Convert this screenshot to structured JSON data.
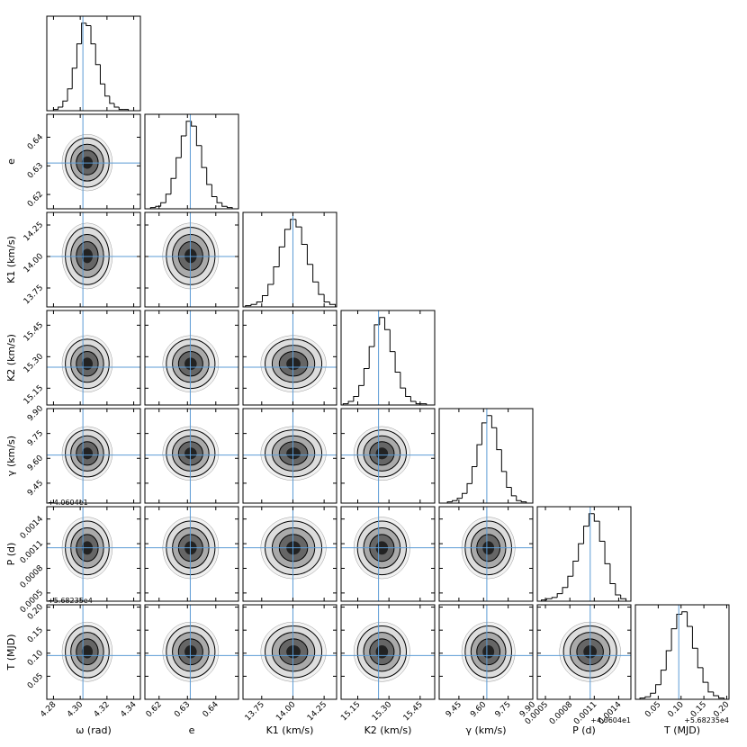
{
  "chart_data": {
    "type": "corner",
    "truth_color": "#5b9bd5",
    "hist_color": "#000000",
    "parameters": [
      {
        "label": "ω (rad)",
        "lim": [
          4.275,
          4.345
        ],
        "ticks": [
          4.28,
          {
            "value": 4.3,
            "label": "4.30"
          },
          4.32,
          4.34
        ],
        "truth": 4.302,
        "bins": [
          4.28,
          4.2835,
          4.287,
          4.2905,
          4.294,
          4.2975,
          4.301,
          4.3045,
          4.308,
          4.3115,
          4.315,
          4.3185,
          4.322,
          4.3255,
          4.329,
          4.3325,
          4.336
        ],
        "counts": [
          1,
          3,
          8,
          18,
          35,
          55,
          72,
          70,
          55,
          38,
          22,
          12,
          6,
          3,
          1,
          1
        ]
      },
      {
        "label": "e",
        "lim": [
          0.615,
          0.648
        ],
        "ticks": [
          0.62,
          0.63,
          0.64
        ],
        "truth": 0.631,
        "bins": [
          0.617,
          0.6188,
          0.6206,
          0.6224,
          0.6242,
          0.626,
          0.6278,
          0.6296,
          0.6314,
          0.6332,
          0.635,
          0.6368,
          0.6386,
          0.6404,
          0.6422,
          0.644,
          0.6458
        ],
        "counts": [
          1,
          2,
          5,
          12,
          25,
          42,
          60,
          72,
          68,
          52,
          34,
          20,
          10,
          5,
          2,
          1
        ]
      },
      {
        "label": "K1 (km/s)",
        "lim": [
          13.6,
          14.35
        ],
        "ticks": [
          13.75,
          {
            "value": 14,
            "label": "14.00"
          },
          14.25
        ],
        "truth": 14.0,
        "bins": [
          13.62,
          13.665,
          13.71,
          13.755,
          13.8,
          13.845,
          13.89,
          13.935,
          13.98,
          14.025,
          14.07,
          14.115,
          14.16,
          14.205,
          14.25,
          14.295,
          14.34
        ],
        "counts": [
          1,
          2,
          4,
          9,
          18,
          32,
          48,
          62,
          70,
          64,
          50,
          34,
          20,
          10,
          4,
          2
        ]
      },
      {
        "label": "K2 (km/s)",
        "lim": [
          15.07,
          15.52
        ],
        "ticks": [
          15.15,
          {
            "value": 15.3,
            "label": "15.30"
          },
          15.45
        ],
        "truth": 15.25,
        "bins": [
          15.08,
          15.105,
          15.13,
          15.155,
          15.18,
          15.205,
          15.23,
          15.255,
          15.28,
          15.305,
          15.33,
          15.355,
          15.38,
          15.405,
          15.43,
          15.455,
          15.48
        ],
        "counts": [
          1,
          3,
          7,
          16,
          30,
          48,
          66,
          72,
          62,
          44,
          27,
          14,
          7,
          3,
          1,
          1
        ]
      },
      {
        "label": "γ (km/s)",
        "lim": [
          9.33,
          9.9
        ],
        "ticks": [
          9.45,
          {
            "value": 9.6,
            "label": "9.60"
          },
          9.75,
          {
            "value": 9.9,
            "label": "9.90"
          }
        ],
        "truth": 9.62,
        "bins": [
          9.38,
          9.41,
          9.44,
          9.47,
          9.5,
          9.53,
          9.56,
          9.59,
          9.62,
          9.65,
          9.68,
          9.71,
          9.74,
          9.77,
          9.8,
          9.83,
          9.86
        ],
        "counts": [
          1,
          2,
          4,
          8,
          16,
          30,
          48,
          66,
          72,
          62,
          44,
          26,
          13,
          6,
          2,
          1
        ]
      },
      {
        "label": "P (d)",
        "offset": "+4.0604e1",
        "lim": [
          0.0004,
          0.00155
        ],
        "ticks": [
          0.0005,
          0.0008,
          0.0011,
          0.0014
        ],
        "truth": 0.00105,
        "bins": [
          0.00045,
          0.000515,
          0.00058,
          0.000645,
          0.00071,
          0.000775,
          0.00084,
          0.000905,
          0.00097,
          0.001035,
          0.0011,
          0.001165,
          0.00123,
          0.001295,
          0.00136,
          0.001425,
          0.00149
        ],
        "counts": [
          1,
          2,
          3,
          6,
          11,
          20,
          32,
          46,
          60,
          70,
          64,
          48,
          30,
          14,
          5,
          2
        ]
      },
      {
        "label": "T (MJD)",
        "offset": "+5.68235e4",
        "lim": [
          0.0,
          0.205
        ],
        "ticks": [
          0.05,
          {
            "value": 0.1,
            "label": "0.10"
          },
          0.15,
          {
            "value": 0.2,
            "label": "0.20"
          }
        ],
        "truth": 0.095,
        "bins": [
          0.01,
          0.0215,
          0.033,
          0.0445,
          0.056,
          0.0675,
          0.079,
          0.0905,
          0.102,
          0.1135,
          0.125,
          0.1365,
          0.148,
          0.1595,
          0.171,
          0.1825,
          0.194
        ],
        "counts": [
          1,
          2,
          5,
          12,
          24,
          40,
          58,
          70,
          72,
          60,
          42,
          26,
          14,
          6,
          3,
          1
        ]
      }
    ]
  }
}
